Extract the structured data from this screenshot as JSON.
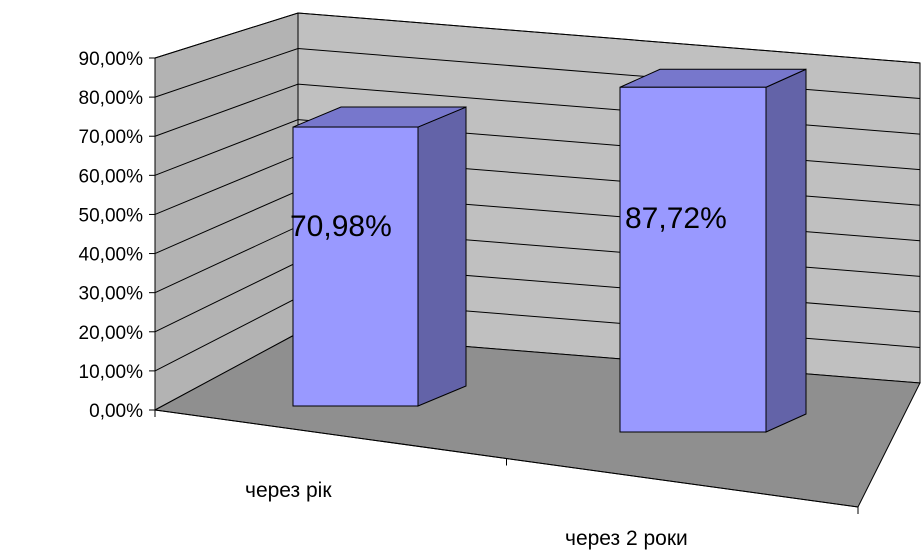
{
  "chart_data": {
    "type": "bar",
    "categories": [
      "через рік",
      "через  2 роки"
    ],
    "values": [
      70.98,
      87.72
    ],
    "data_labels": [
      "70,98%",
      "87,72%"
    ],
    "ylim": [
      0,
      90
    ],
    "yticks": [
      "0,00%",
      "10,00%",
      "20,00%",
      "30,00%",
      "40,00%",
      "50,00%",
      "60,00%",
      "70,00%",
      "80,00%",
      "90,00%"
    ],
    "grid": true,
    "style": "3d",
    "colors": {
      "bar_front": "#9999ff",
      "bar_top": "#7777cc",
      "bar_side": "#6363a8",
      "back_wall": "#c0c0c0",
      "side_wall": "#b3b3b3",
      "floor": "#8f8f8f"
    }
  }
}
